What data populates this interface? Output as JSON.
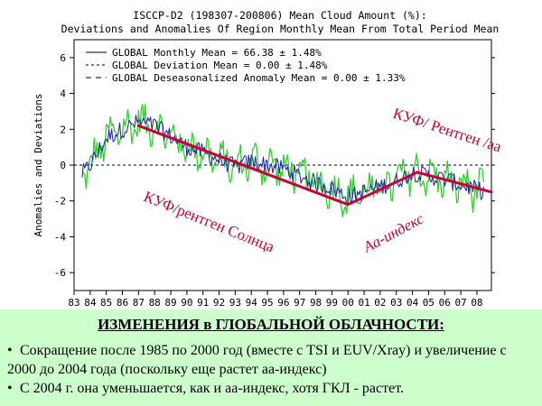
{
  "chart_data": {
    "type": "line",
    "title": "ISCCP-D2 (198307-200806) Mean Cloud Amount (%):",
    "subtitle": "Deviations and Anomalies Of Region Monthly Mean From Total Period Mean",
    "ylabel": "Anomalies and Deviations",
    "xlabel": "",
    "ylim": [
      -7,
      7
    ],
    "xlim": [
      1983.0,
      2008.9
    ],
    "yticks": [
      "6",
      "4",
      "2",
      "0",
      "-2",
      "-4",
      "-6"
    ],
    "xticks": [
      "83",
      "84",
      "85",
      "86",
      "87",
      "88",
      "89",
      "90",
      "91",
      "92",
      "93",
      "94",
      "95",
      "96",
      "97",
      "98",
      "99",
      "00",
      "01",
      "02",
      "03",
      "04",
      "05",
      "06",
      "07",
      "08"
    ],
    "legend": [
      {
        "style": "solid",
        "label": "GLOBAL Monthly Mean = 66.38 ± 1.48%"
      },
      {
        "style": "dashed",
        "label": "GLOBAL Deviation Mean = 0.00 ± 1.48%"
      },
      {
        "style": "longdash",
        "label": "GLOBAL Deseasonalized Anomaly Mean = 0.00 ± 1.33%"
      }
    ],
    "legend_position": "top-left",
    "series": [
      {
        "color": "#33cc33"
      },
      {
        "color": "#1f1fa8"
      }
    ],
    "envelope": {
      "x": [
        1983.5,
        1984.0,
        1985.0,
        1986.0,
        1987.0,
        1988.0,
        1989.0,
        1990.0,
        1991.0,
        1992.0,
        1993.0,
        1994.0,
        1995.0,
        1996.0,
        1997.0,
        1998.0,
        1999.0,
        2000.0,
        2001.0,
        2002.0,
        2003.0,
        2004.0,
        2005.0,
        2006.0,
        2007.0,
        2008.5
      ],
      "y": [
        -0.5,
        0.0,
        1.5,
        2.0,
        2.4,
        2.2,
        1.6,
        1.0,
        0.7,
        0.3,
        -0.1,
        0.2,
        0.0,
        -0.2,
        -0.6,
        -1.0,
        -1.3,
        -1.8,
        -1.5,
        -1.2,
        -0.9,
        -0.4,
        -0.6,
        -0.8,
        -1.1,
        -1.5
      ]
    },
    "trend_lines": [
      {
        "color": "#cc0033",
        "x": [
          1987.0,
          2000.0
        ],
        "y": [
          2.2,
          -2.2
        ]
      },
      {
        "color": "#cc0033",
        "x": [
          2000.0,
          2004.3
        ],
        "y": [
          -2.2,
          -0.4
        ]
      },
      {
        "color": "#cc0033",
        "x": [
          2004.3,
          2008.9
        ],
        "y": [
          -0.4,
          -1.5
        ]
      }
    ],
    "annotations": [
      {
        "text": "КУФ/рентген Солнца",
        "color": "#cc0033"
      },
      {
        "text": "Aa-индекс",
        "color": "#cc0033"
      },
      {
        "text": "КУФ/ Рентген /aa",
        "color": "#cc0033"
      }
    ]
  },
  "caption": {
    "heading": "ИЗМЕНЕНИЯ в ГЛОБАЛЬНОЙ ОБЛАЧНОСТИ:",
    "bullets": [
      "Сокращение после 1985 по 2000 год (вместе с TSI и EUV/Xray) и увеличение с 2000 до 2004 года (поскольку еще растет aa-индекс)",
      "С 2004 г. она уменьшается, как и aa-индекс, хотя ГКЛ - растет."
    ]
  }
}
